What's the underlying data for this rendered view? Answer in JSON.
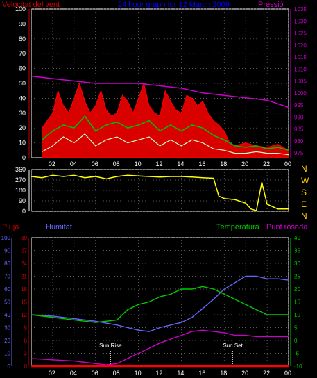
{
  "chart_data": [
    {
      "type": "line",
      "title": "24 hour graph for  12 March 2009",
      "left_axis_label": "Velocitat del vent",
      "right_axis_label": "Pressió",
      "x_ticks": [
        "02",
        "04",
        "06",
        "08",
        "10",
        "12",
        "14",
        "16",
        "18",
        "20",
        "22",
        "00"
      ],
      "y_left_ticks": [
        0,
        10,
        20,
        30,
        40,
        50,
        60,
        70,
        80,
        90,
        100
      ],
      "y_left_range": [
        0,
        100
      ],
      "y_right_ticks": [
        975,
        980,
        985,
        990,
        995,
        1000,
        1005,
        1010,
        1015,
        1020,
        1025,
        1030,
        1035
      ],
      "y_right_range": [
        973,
        1035
      ],
      "grid": true,
      "colors": {
        "gust": "#ff0000",
        "avg_wind": "#00c000",
        "wind_min": "#ccffcc",
        "pressure": "#cc00cc",
        "title": "#0000ff",
        "left_label": "#cc0000"
      },
      "series": [
        {
          "name": "gust",
          "axis": "left",
          "x": [
            1,
            2,
            2.5,
            3,
            3.5,
            4,
            4.5,
            5,
            5.5,
            6,
            6.5,
            7,
            7.5,
            8,
            8.5,
            9,
            9.5,
            10,
            10.5,
            11,
            11.5,
            12,
            12.5,
            13,
            13.5,
            14,
            14.5,
            15,
            15.5,
            16,
            16.5,
            17,
            17.5,
            18,
            18.5,
            19,
            20,
            21,
            22,
            23,
            24
          ],
          "y": [
            20,
            30,
            45,
            35,
            30,
            40,
            50,
            38,
            30,
            35,
            45,
            32,
            28,
            30,
            42,
            38,
            30,
            40,
            50,
            35,
            30,
            28,
            45,
            38,
            32,
            30,
            42,
            40,
            35,
            38,
            30,
            25,
            22,
            18,
            10,
            8,
            10,
            8,
            7,
            9,
            5
          ]
        },
        {
          "name": "avg_wind",
          "axis": "left",
          "x": [
            1,
            2,
            3,
            4,
            5,
            6,
            7,
            8,
            9,
            10,
            11,
            12,
            13,
            14,
            15,
            16,
            17,
            18,
            19,
            20,
            21,
            22,
            23,
            24
          ],
          "y": [
            12,
            18,
            22,
            20,
            28,
            18,
            22,
            24,
            20,
            22,
            25,
            18,
            22,
            18,
            22,
            20,
            15,
            12,
            8,
            7,
            8,
            6,
            7,
            5
          ]
        },
        {
          "name": "wind_min",
          "axis": "left",
          "x": [
            1,
            2,
            3,
            4,
            5,
            6,
            7,
            8,
            9,
            10,
            11,
            12,
            13,
            14,
            15,
            16,
            17,
            18,
            19,
            20,
            21,
            22,
            23,
            24
          ],
          "y": [
            4,
            8,
            14,
            10,
            16,
            8,
            12,
            14,
            10,
            12,
            14,
            8,
            12,
            8,
            12,
            10,
            6,
            5,
            3,
            3,
            4,
            3,
            3,
            2
          ]
        },
        {
          "name": "pressure",
          "axis": "right",
          "x": [
            0,
            2,
            4,
            6,
            8,
            10,
            12,
            14,
            16,
            18,
            20,
            22,
            24
          ],
          "y": [
            1007,
            1006,
            1005,
            1004,
            1004,
            1004,
            1003,
            1002,
            1000,
            999,
            998,
            997,
            994
          ]
        }
      ]
    },
    {
      "type": "scatter",
      "x_ticks": [
        "02",
        "04",
        "06",
        "08",
        "10",
        "12",
        "14",
        "16",
        "18",
        "20",
        "22",
        "00"
      ],
      "y_left_ticks": [
        0,
        90,
        180,
        270,
        360
      ],
      "y_range": [
        0,
        360
      ],
      "right_labels": [
        "N",
        "W",
        "S",
        "E",
        "N"
      ],
      "colors": {
        "direction": "#ffff00",
        "labels": "#ffcc00"
      },
      "series": [
        {
          "name": "wind_direction",
          "x": [
            0,
            1,
            2,
            3,
            4,
            5,
            6,
            7,
            8,
            9,
            10,
            11,
            12,
            13,
            14,
            15,
            16,
            17,
            17.5,
            18,
            19,
            20,
            20.5,
            21,
            21.5,
            22,
            23,
            24
          ],
          "y": [
            300,
            290,
            310,
            300,
            310,
            290,
            300,
            280,
            300,
            310,
            305,
            300,
            295,
            300,
            300,
            295,
            290,
            285,
            130,
            110,
            100,
            70,
            20,
            5,
            250,
            60,
            20,
            20
          ]
        }
      ]
    },
    {
      "type": "line",
      "left_labels": {
        "rain": "Pluja",
        "humidity": "Humitat"
      },
      "right_labels": {
        "temperature": "Temperatura",
        "dewpoint": "Punt rosada"
      },
      "x_ticks": [
        "02",
        "04",
        "06",
        "08",
        "10",
        "12",
        "14",
        "16",
        "18",
        "20",
        "22",
        "00"
      ],
      "y_humidity_ticks": [
        0,
        10,
        20,
        30,
        40,
        50,
        60,
        70,
        80,
        90,
        100
      ],
      "y_rain_ticks": [
        0,
        3,
        6,
        9,
        12,
        15,
        18,
        21,
        24,
        27,
        30
      ],
      "y_temp_ticks": [
        -10,
        -5,
        0,
        5,
        10,
        15,
        20,
        25,
        30,
        35,
        40
      ],
      "y_temp_range": [
        -10,
        40
      ],
      "grid": true,
      "annotations": [
        {
          "text": "Sun Rise",
          "x": 7.4
        },
        {
          "text": "Sun Set",
          "x": 18.8
        }
      ],
      "colors": {
        "rain": "#ff0000",
        "humidity": "#6666ff",
        "temperature": "#00cc00",
        "dewpoint": "#cc00cc",
        "rain_axis": "#cc0000",
        "annotation": "#ffffff"
      },
      "series": [
        {
          "name": "Humitat",
          "axis": "humidity",
          "x": [
            0,
            2,
            4,
            6,
            8,
            9,
            10,
            11,
            12,
            13,
            14,
            15,
            16,
            17,
            18,
            19,
            20,
            21,
            22,
            23,
            24
          ],
          "y": [
            40,
            39,
            37,
            35,
            32,
            30,
            28,
            27,
            30,
            32,
            34,
            38,
            45,
            52,
            60,
            65,
            70,
            70,
            68,
            68,
            67
          ]
        },
        {
          "name": "Temperatura",
          "axis": "temp",
          "x": [
            0,
            2,
            4,
            6,
            8,
            9,
            10,
            11,
            12,
            13,
            14,
            15,
            16,
            17,
            18,
            19,
            20,
            21,
            22,
            23,
            24
          ],
          "y": [
            10,
            9,
            8,
            7,
            8,
            12,
            14,
            15,
            17,
            18,
            20,
            20,
            21,
            20,
            18,
            16,
            14,
            12,
            10,
            10,
            10
          ]
        },
        {
          "name": "Punt rosada",
          "axis": "temp",
          "x": [
            0,
            2,
            4,
            6,
            7,
            8,
            9,
            10,
            11,
            12,
            13,
            14,
            15,
            16,
            17,
            18,
            19,
            20,
            21,
            22,
            23,
            24
          ],
          "y": [
            -7,
            -7.5,
            -8,
            -9,
            -9.5,
            -9,
            -7,
            -5,
            -3,
            -1,
            0.5,
            2,
            3.5,
            4,
            3.5,
            3,
            2,
            2,
            1.5,
            1.5,
            1.5,
            1.5
          ]
        },
        {
          "name": "Pluja",
          "axis": "rain",
          "x": [
            0,
            24
          ],
          "y": [
            0,
            0
          ]
        }
      ]
    }
  ]
}
